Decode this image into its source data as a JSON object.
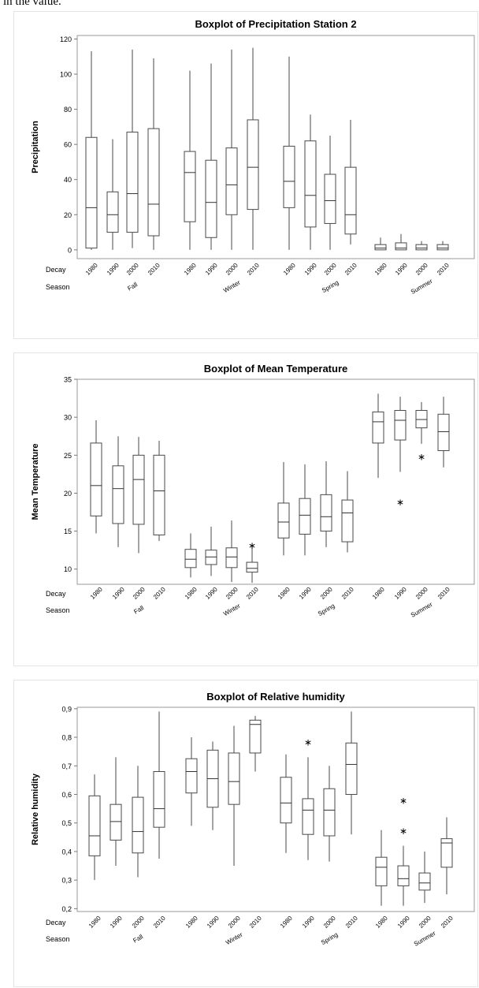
{
  "page": {
    "top_text": "in the value."
  },
  "chart_data": [
    {
      "type": "boxplot",
      "title": "Boxplot of Precipitation Station 2",
      "ylabel": "Precipitation",
      "ylim": [
        -5,
        122
      ],
      "yticks": [
        0,
        20,
        40,
        60,
        80,
        100,
        120
      ],
      "ytick_labels": [
        "0",
        "20",
        "40",
        "60",
        "80",
        "100",
        "120"
      ],
      "row_labels": [
        "Decay",
        "Season"
      ],
      "decades": [
        "1980",
        "1990",
        "2000",
        "2010"
      ],
      "decade_labels": [
        "1980",
        "1990",
        "2000",
        "2010"
      ],
      "seasons": [
        "Fall",
        "Winter",
        "Spring",
        "Summer"
      ],
      "grid": false,
      "series": [
        {
          "season": "Fall",
          "boxes": [
            {
              "decade": "1980",
              "whisker_low": 0,
              "q1": 1,
              "median": 24,
              "q3": 64,
              "whisker_high": 113
            },
            {
              "decade": "1990",
              "whisker_low": 0,
              "q1": 10,
              "median": 20,
              "q3": 33,
              "whisker_high": 63
            },
            {
              "decade": "2000",
              "whisker_low": 1,
              "q1": 10,
              "median": 32,
              "q3": 67,
              "whisker_high": 114
            },
            {
              "decade": "2010",
              "whisker_low": 0,
              "q1": 8,
              "median": 26,
              "q3": 69,
              "whisker_high": 109
            }
          ]
        },
        {
          "season": "Winter",
          "boxes": [
            {
              "decade": "1980",
              "whisker_low": 0,
              "q1": 16,
              "median": 44,
              "q3": 56,
              "whisker_high": 102
            },
            {
              "decade": "1990",
              "whisker_low": 0,
              "q1": 7,
              "median": 27,
              "q3": 51,
              "whisker_high": 106
            },
            {
              "decade": "2000",
              "whisker_low": 0,
              "q1": 20,
              "median": 37,
              "q3": 58,
              "whisker_high": 114
            },
            {
              "decade": "2010",
              "whisker_low": 0,
              "q1": 23,
              "median": 47,
              "q3": 74,
              "whisker_high": 115
            }
          ]
        },
        {
          "season": "Spring",
          "boxes": [
            {
              "decade": "1980",
              "whisker_low": 0,
              "q1": 24,
              "median": 39,
              "q3": 59,
              "whisker_high": 110
            },
            {
              "decade": "1990",
              "whisker_low": 0,
              "q1": 13,
              "median": 31,
              "q3": 62,
              "whisker_high": 77
            },
            {
              "decade": "2000",
              "whisker_low": 0,
              "q1": 15,
              "median": 28,
              "q3": 43,
              "whisker_high": 65
            },
            {
              "decade": "2010",
              "whisker_low": 3,
              "q1": 9,
              "median": 20,
              "q3": 47,
              "whisker_high": 74
            }
          ]
        },
        {
          "season": "Summer",
          "boxes": [
            {
              "decade": "1980",
              "whisker_low": 0,
              "q1": 0,
              "median": 1,
              "q3": 3,
              "whisker_high": 7
            },
            {
              "decade": "1990",
              "whisker_low": 0,
              "q1": 0,
              "median": 1,
              "q3": 4,
              "whisker_high": 9
            },
            {
              "decade": "2000",
              "whisker_low": 0,
              "q1": 0,
              "median": 1,
              "q3": 3,
              "whisker_high": 5
            },
            {
              "decade": "2010",
              "whisker_low": 0,
              "q1": 0,
              "median": 1,
              "q3": 3,
              "whisker_high": 5
            }
          ]
        }
      ]
    },
    {
      "type": "boxplot",
      "title": "Boxplot of Mean Temperature",
      "ylabel": "Mean Temperature",
      "ylim": [
        8,
        35
      ],
      "yticks": [
        10,
        15,
        20,
        25,
        30,
        35
      ],
      "ytick_labels": [
        "10",
        "15",
        "20",
        "25",
        "30",
        "35"
      ],
      "row_labels": [
        "Decay",
        "Season"
      ],
      "decades": [
        "1980",
        "1990",
        "2000",
        "2010"
      ],
      "decade_labels": [
        "1980",
        "1990",
        "2000",
        "2010"
      ],
      "seasons": [
        "Fall",
        "Winter",
        "Spring",
        "Summer"
      ],
      "grid": false,
      "series": [
        {
          "season": "Fall",
          "boxes": [
            {
              "decade": "1980",
              "whisker_low": 14.7,
              "q1": 17,
              "median": 21,
              "q3": 26.6,
              "whisker_high": 29.6
            },
            {
              "decade": "1990",
              "whisker_low": 12.9,
              "q1": 16,
              "median": 20.6,
              "q3": 23.6,
              "whisker_high": 27.5
            },
            {
              "decade": "2000",
              "whisker_low": 12.1,
              "q1": 15.9,
              "median": 21.8,
              "q3": 25,
              "whisker_high": 27.4
            },
            {
              "decade": "2010",
              "whisker_low": 13.7,
              "q1": 14.5,
              "median": 20.3,
              "q3": 25,
              "whisker_high": 26.9
            }
          ]
        },
        {
          "season": "Winter",
          "boxes": [
            {
              "decade": "1980",
              "whisker_low": 8.9,
              "q1": 10.2,
              "median": 11.3,
              "q3": 12.6,
              "whisker_high": 14.7
            },
            {
              "decade": "1990",
              "whisker_low": 9.1,
              "q1": 10.6,
              "median": 11.6,
              "q3": 12.5,
              "whisker_high": 15.6
            },
            {
              "decade": "2000",
              "whisker_low": 8.3,
              "q1": 10.2,
              "median": 11.6,
              "q3": 12.8,
              "whisker_high": 16.4
            },
            {
              "decade": "2010",
              "whisker_low": 8.2,
              "q1": 9.6,
              "median": 10.1,
              "q3": 10.9,
              "whisker_high": 12.9,
              "outliers": [
                13.2
              ]
            }
          ]
        },
        {
          "season": "Spring",
          "boxes": [
            {
              "decade": "1980",
              "whisker_low": 11.8,
              "q1": 14.1,
              "median": 16.2,
              "q3": 18.7,
              "whisker_high": 24.1
            },
            {
              "decade": "1990",
              "whisker_low": 11.8,
              "q1": 14.6,
              "median": 17.1,
              "q3": 19.3,
              "whisker_high": 23.8
            },
            {
              "decade": "2000",
              "whisker_low": 12.9,
              "q1": 15,
              "median": 16.9,
              "q3": 19.8,
              "whisker_high": 24.2
            },
            {
              "decade": "2010",
              "whisker_low": 12.2,
              "q1": 13.6,
              "median": 17.4,
              "q3": 19.1,
              "whisker_high": 22.9
            }
          ]
        },
        {
          "season": "Summer",
          "boxes": [
            {
              "decade": "1980",
              "whisker_low": 22,
              "q1": 26.6,
              "median": 29.4,
              "q3": 30.7,
              "whisker_high": 33.1
            },
            {
              "decade": "1990",
              "whisker_low": 22.8,
              "q1": 27,
              "median": 29.6,
              "q3": 30.9,
              "whisker_high": 32.7,
              "outliers": [
                18.9
              ]
            },
            {
              "decade": "2000",
              "whisker_low": 26.5,
              "q1": 28.6,
              "median": 29.7,
              "q3": 30.9,
              "whisker_high": 32,
              "outliers": [
                24.9
              ]
            },
            {
              "decade": "2010",
              "whisker_low": 23.4,
              "q1": 25.6,
              "median": 28.1,
              "q3": 30.4,
              "whisker_high": 32.7
            }
          ]
        }
      ]
    },
    {
      "type": "boxplot",
      "title": "Boxplot of Relative humidity",
      "ylabel": "Relative humidity",
      "ylim": [
        0.19,
        0.905
      ],
      "yticks": [
        0.2,
        0.3,
        0.4,
        0.5,
        0.6,
        0.7,
        0.8,
        0.9
      ],
      "ytick_labels": [
        "0,2",
        "0,3",
        "0,4",
        "0,5",
        "0,6",
        "0,7",
        "0,8",
        "0,9"
      ],
      "row_labels": [
        "Decay",
        "Season"
      ],
      "decades": [
        "1980",
        "1990",
        "2000",
        "2010"
      ],
      "decade_labels": [
        "1980",
        "1990",
        "2000",
        "2010"
      ],
      "seasons": [
        "Fall",
        "Winter",
        "Spring",
        "Summer"
      ],
      "grid": false,
      "series": [
        {
          "season": "Fall",
          "boxes": [
            {
              "decade": "1980",
              "whisker_low": 0.3,
              "q1": 0.385,
              "median": 0.455,
              "q3": 0.595,
              "whisker_high": 0.67
            },
            {
              "decade": "1990",
              "whisker_low": 0.35,
              "q1": 0.44,
              "median": 0.505,
              "q3": 0.565,
              "whisker_high": 0.73
            },
            {
              "decade": "2000",
              "whisker_low": 0.31,
              "q1": 0.395,
              "median": 0.47,
              "q3": 0.59,
              "whisker_high": 0.7
            },
            {
              "decade": "2010",
              "whisker_low": 0.375,
              "q1": 0.485,
              "median": 0.55,
              "q3": 0.68,
              "whisker_high": 0.89
            }
          ]
        },
        {
          "season": "Winter",
          "boxes": [
            {
              "decade": "1980",
              "whisker_low": 0.49,
              "q1": 0.605,
              "median": 0.68,
              "q3": 0.725,
              "whisker_high": 0.8
            },
            {
              "decade": "1990",
              "whisker_low": 0.475,
              "q1": 0.555,
              "median": 0.655,
              "q3": 0.755,
              "whisker_high": 0.785
            },
            {
              "decade": "2000",
              "whisker_low": 0.35,
              "q1": 0.565,
              "median": 0.645,
              "q3": 0.745,
              "whisker_high": 0.84
            },
            {
              "decade": "2010",
              "whisker_low": 0.68,
              "q1": 0.745,
              "median": 0.845,
              "q3": 0.86,
              "whisker_high": 0.875
            }
          ]
        },
        {
          "season": "Spring",
          "boxes": [
            {
              "decade": "1980",
              "whisker_low": 0.395,
              "q1": 0.5,
              "median": 0.57,
              "q3": 0.66,
              "whisker_high": 0.74
            },
            {
              "decade": "1990",
              "whisker_low": 0.37,
              "q1": 0.46,
              "median": 0.545,
              "q3": 0.585,
              "whisker_high": 0.73,
              "outliers": [
                0.785
              ]
            },
            {
              "decade": "2000",
              "whisker_low": 0.365,
              "q1": 0.455,
              "median": 0.545,
              "q3": 0.62,
              "whisker_high": 0.7
            },
            {
              "decade": "2010",
              "whisker_low": 0.46,
              "q1": 0.6,
              "median": 0.705,
              "q3": 0.78,
              "whisker_high": 0.89
            }
          ]
        },
        {
          "season": "Summer",
          "boxes": [
            {
              "decade": "1980",
              "whisker_low": 0.21,
              "q1": 0.28,
              "median": 0.345,
              "q3": 0.38,
              "whisker_high": 0.475
            },
            {
              "decade": "1990",
              "whisker_low": 0.21,
              "q1": 0.28,
              "median": 0.305,
              "q3": 0.35,
              "whisker_high": 0.42,
              "outliers": [
                0.475,
                0.58
              ]
            },
            {
              "decade": "2000",
              "whisker_low": 0.22,
              "q1": 0.265,
              "median": 0.29,
              "q3": 0.325,
              "whisker_high": 0.4
            },
            {
              "decade": "2010",
              "whisker_low": 0.25,
              "q1": 0.345,
              "median": 0.43,
              "q3": 0.445,
              "whisker_high": 0.52
            }
          ]
        }
      ]
    }
  ]
}
